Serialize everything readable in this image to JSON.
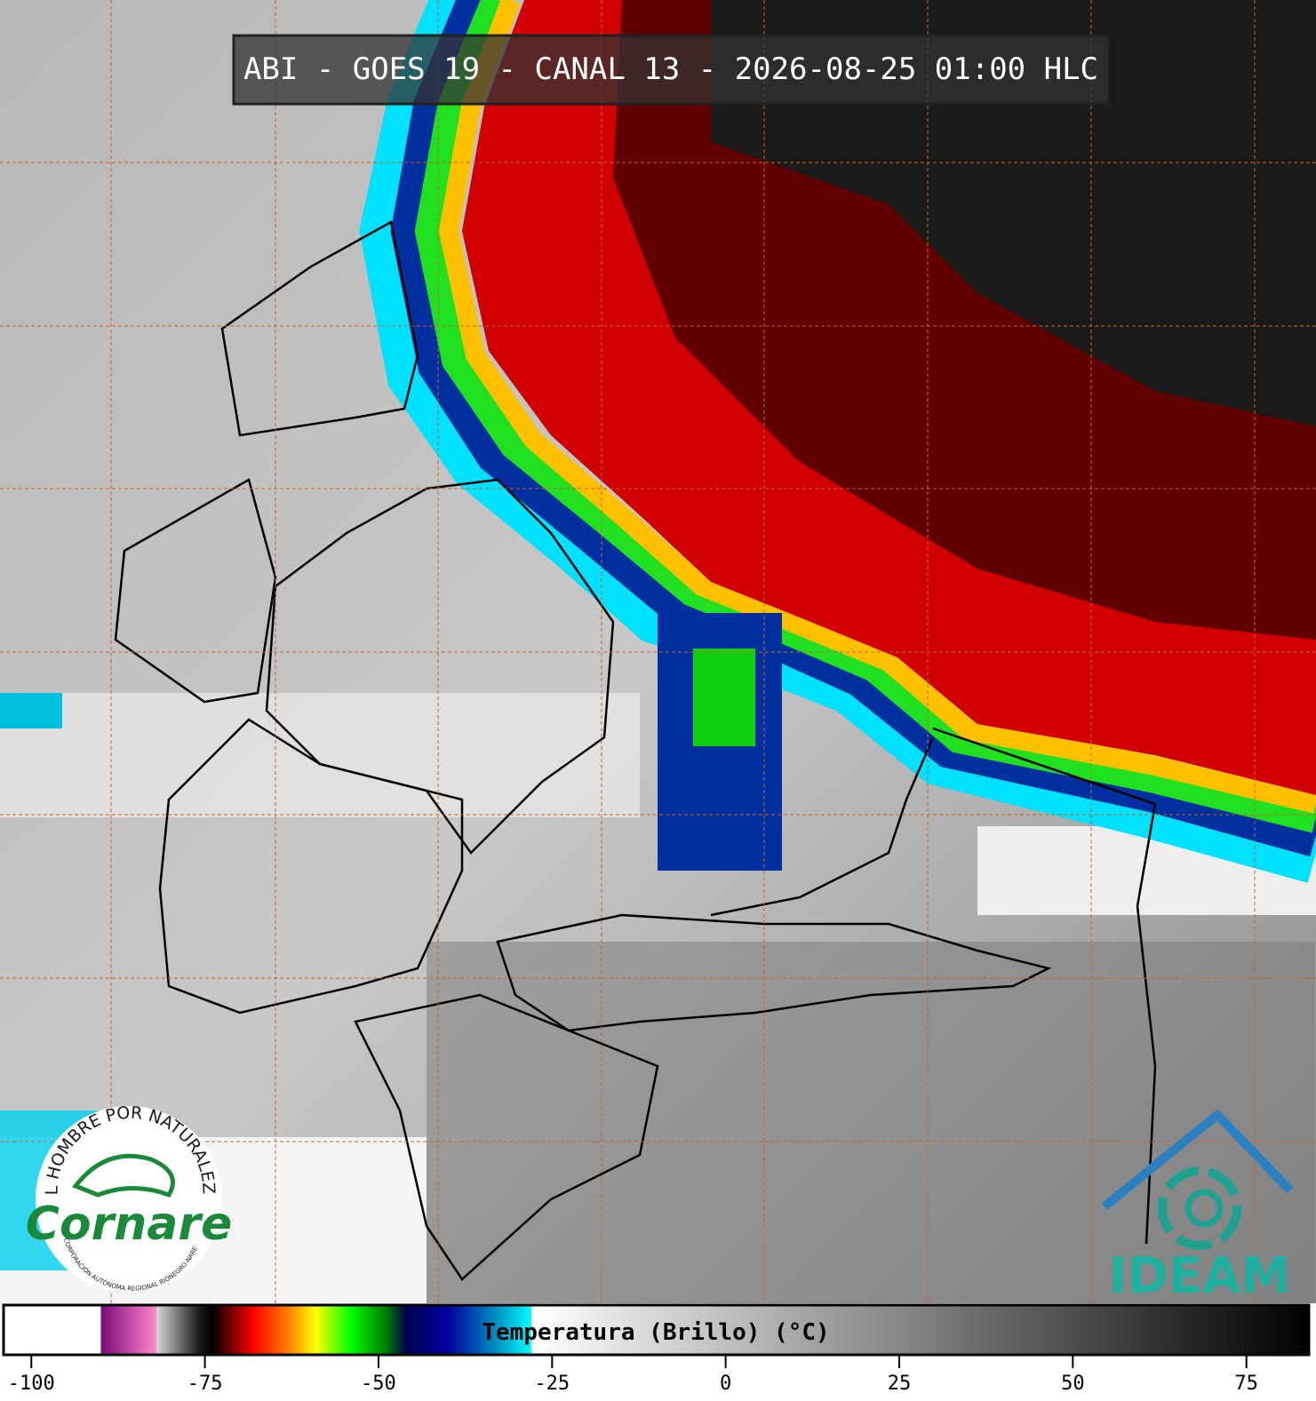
{
  "title": "ABI - GOES 19 - CANAL 13 - 2026-08-25 01:00 HLC",
  "colorbar": {
    "label": "Temperatura (Brillo) (°C)",
    "lim": [
      -104,
      84
    ],
    "ticks": [
      -100,
      -75,
      -50,
      -25,
      0,
      25,
      50,
      75
    ],
    "stops": [
      {
        "value": -104,
        "color": "#ffffff"
      },
      {
        "value": -90,
        "color": "#ffffff"
      },
      {
        "value": -90,
        "color": "#7a0a7a"
      },
      {
        "value": -82,
        "color": "#ff88cc"
      },
      {
        "value": -82,
        "color": "#d8d8d8"
      },
      {
        "value": -76,
        "color": "#202020"
      },
      {
        "value": -74,
        "color": "#000000"
      },
      {
        "value": -68,
        "color": "#ff0000"
      },
      {
        "value": -63,
        "color": "#ff8000"
      },
      {
        "value": -59,
        "color": "#ffff00"
      },
      {
        "value": -54,
        "color": "#00ff00"
      },
      {
        "value": -49,
        "color": "#008000"
      },
      {
        "value": -46,
        "color": "#000050"
      },
      {
        "value": -40,
        "color": "#0000a0"
      },
      {
        "value": -33,
        "color": "#0090c0"
      },
      {
        "value": -28,
        "color": "#00ffff"
      },
      {
        "value": -28,
        "color": "#ffffff"
      },
      {
        "value": 84,
        "color": "#000000"
      }
    ]
  },
  "logos": {
    "cornare": {
      "motto": "EL HOMBRE POR NATURALEZA",
      "name": "Cornare",
      "subtitle": "CORPORACIÓN AUTÓNOMA REGIONAL RIONEGRO-NARE"
    },
    "ideam": {
      "name": "IDEAM"
    }
  }
}
